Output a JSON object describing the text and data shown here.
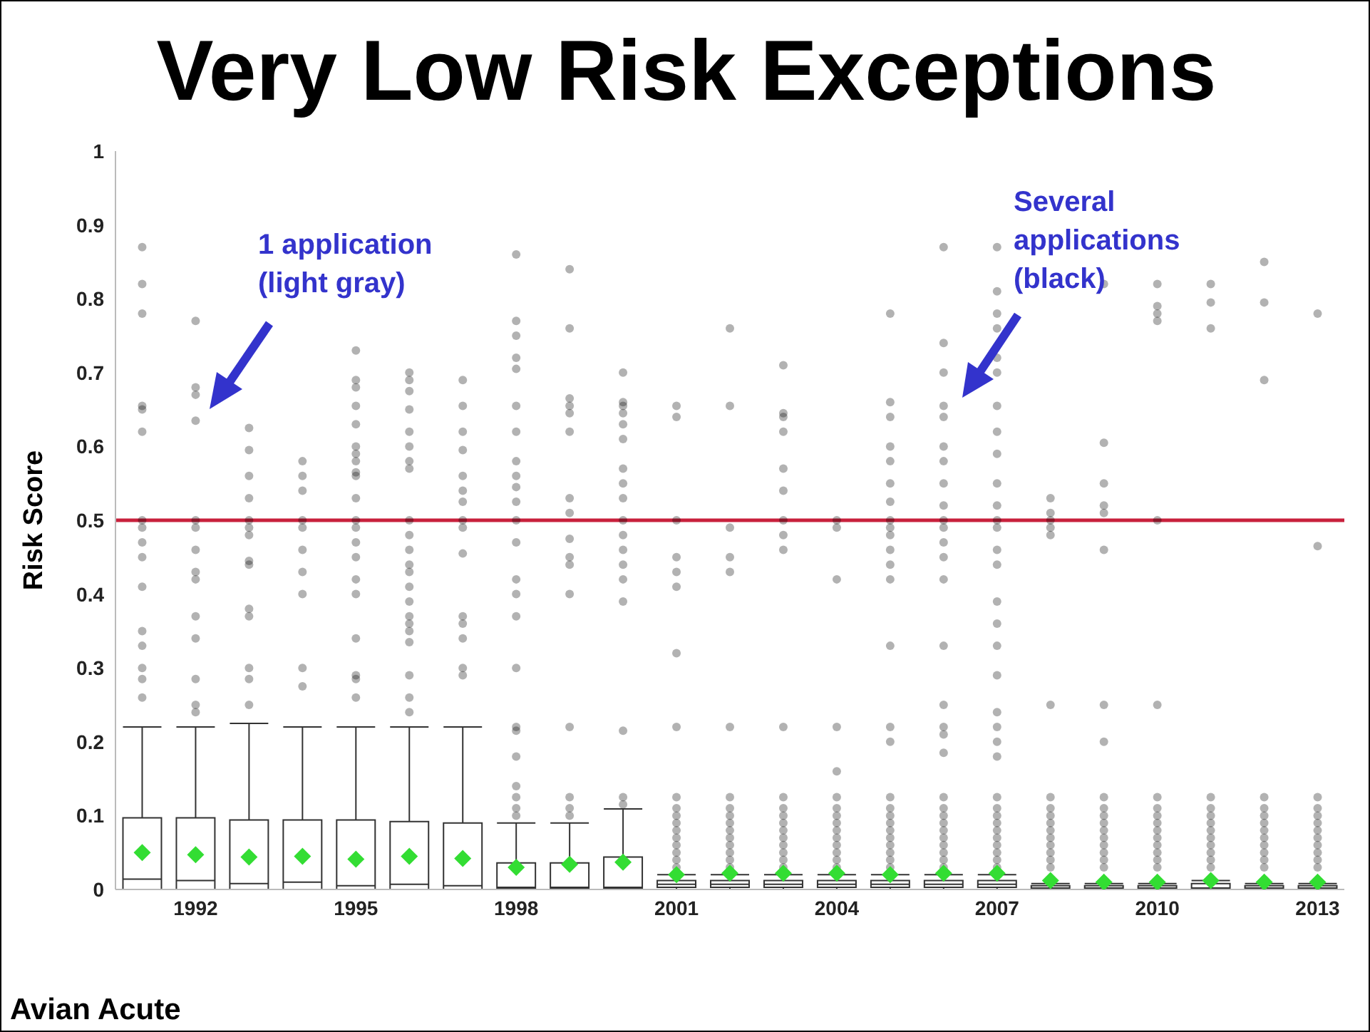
{
  "chart_data": {
    "type": "box",
    "title": "Very Low Risk Exceptions",
    "ylabel": "Risk Score",
    "categories": [
      null,
      "1992",
      null,
      null,
      "1995",
      null,
      null,
      "1998",
      null,
      null,
      "2001",
      null,
      null,
      "2004",
      null,
      null,
      "2007",
      null,
      null,
      "2010",
      null,
      null,
      "2013"
    ],
    "ylim": [
      0,
      1
    ],
    "yticks": [
      0,
      0.1,
      0.2,
      0.3,
      0.4,
      0.5,
      0.6,
      0.7,
      0.8,
      0.9,
      1
    ],
    "color": "#333333",
    "boxes": [
      {
        "low": 0,
        "q1": 0,
        "median": 0.014,
        "q3": 0.097,
        "high": 0.22,
        "mean": 0.05,
        "outliers": [
          0.87,
          0.82,
          0.78,
          0.655,
          0.65,
          0.62,
          0.5,
          0.49,
          0.47,
          0.45,
          0.41,
          0.35,
          0.33,
          0.3,
          0.285,
          0.26
        ]
      },
      {
        "low": 0,
        "q1": 0,
        "median": 0.012,
        "q3": 0.097,
        "high": 0.22,
        "mean": 0.047,
        "outliers": [
          0.77,
          0.68,
          0.67,
          0.635,
          0.5,
          0.49,
          0.46,
          0.43,
          0.42,
          0.37,
          0.34,
          0.285,
          0.25,
          0.24
        ]
      },
      {
        "low": 0,
        "q1": 0,
        "median": 0.008,
        "q3": 0.094,
        "high": 0.225,
        "mean": 0.044,
        "outliers": [
          0.625,
          0.595,
          0.56,
          0.53,
          0.5,
          0.49,
          0.48,
          0.445,
          0.44,
          0.38,
          0.37,
          0.3,
          0.285,
          0.25
        ]
      },
      {
        "low": 0,
        "q1": 0,
        "median": 0.01,
        "q3": 0.094,
        "high": 0.22,
        "mean": 0.045,
        "outliers": [
          0.58,
          0.56,
          0.54,
          0.5,
          0.49,
          0.46,
          0.43,
          0.4,
          0.3,
          0.275
        ]
      },
      {
        "low": 0,
        "q1": 0,
        "median": 0.005,
        "q3": 0.094,
        "high": 0.22,
        "mean": 0.041,
        "outliers": [
          0.73,
          0.69,
          0.68,
          0.655,
          0.63,
          0.6,
          0.59,
          0.58,
          0.565,
          0.56,
          0.53,
          0.5,
          0.49,
          0.47,
          0.45,
          0.42,
          0.4,
          0.34,
          0.29,
          0.285,
          0.26
        ]
      },
      {
        "low": 0,
        "q1": 0,
        "median": 0.007,
        "q3": 0.092,
        "high": 0.22,
        "mean": 0.045,
        "outliers": [
          0.7,
          0.69,
          0.675,
          0.65,
          0.62,
          0.6,
          0.58,
          0.57,
          0.5,
          0.48,
          0.46,
          0.44,
          0.43,
          0.41,
          0.39,
          0.37,
          0.36,
          0.35,
          0.335,
          0.29,
          0.26,
          0.24
        ]
      },
      {
        "low": 0,
        "q1": 0,
        "median": 0.005,
        "q3": 0.09,
        "high": 0.22,
        "mean": 0.042,
        "outliers": [
          0.69,
          0.655,
          0.62,
          0.595,
          0.56,
          0.54,
          0.525,
          0.5,
          0.49,
          0.455,
          0.37,
          0.36,
          0.34,
          0.3,
          0.29
        ]
      },
      {
        "low": 0,
        "q1": 0.002,
        "median": 0.003,
        "q3": 0.036,
        "high": 0.09,
        "mean": 0.03,
        "outliers": [
          0.86,
          0.77,
          0.75,
          0.72,
          0.705,
          0.655,
          0.62,
          0.58,
          0.56,
          0.545,
          0.525,
          0.5,
          0.47,
          0.42,
          0.4,
          0.37,
          0.3,
          0.22,
          0.215,
          0.18,
          0.14,
          0.125,
          0.11,
          0.1
        ]
      },
      {
        "low": 0,
        "q1": 0.002,
        "median": 0.003,
        "q3": 0.036,
        "high": 0.09,
        "mean": 0.034,
        "outliers": [
          0.84,
          0.76,
          0.665,
          0.655,
          0.645,
          0.62,
          0.53,
          0.51,
          0.475,
          0.45,
          0.44,
          0.4,
          0.22,
          0.125,
          0.11,
          0.1
        ]
      },
      {
        "low": 0,
        "q1": 0.002,
        "median": 0.003,
        "q3": 0.044,
        "high": 0.109,
        "mean": 0.037,
        "outliers": [
          0.7,
          0.66,
          0.655,
          0.645,
          0.63,
          0.61,
          0.57,
          0.55,
          0.53,
          0.5,
          0.48,
          0.46,
          0.44,
          0.42,
          0.39,
          0.215,
          0.125,
          0.115
        ]
      },
      {
        "low": 0,
        "q1": 0.003,
        "median": 0.007,
        "q3": 0.012,
        "high": 0.02,
        "mean": 0.02,
        "outliers": [
          0.655,
          0.64,
          0.5,
          0.45,
          0.43,
          0.41,
          0.32,
          0.22,
          0.125,
          0.11,
          0.1,
          0.09,
          0.08,
          0.07,
          0.06,
          0.05,
          0.04,
          0.03
        ]
      },
      {
        "low": 0,
        "q1": 0.003,
        "median": 0.007,
        "q3": 0.012,
        "high": 0.02,
        "mean": 0.022,
        "outliers": [
          0.76,
          0.655,
          0.49,
          0.45,
          0.43,
          0.22,
          0.125,
          0.11,
          0.1,
          0.09,
          0.08,
          0.07,
          0.06,
          0.05,
          0.04,
          0.03
        ]
      },
      {
        "low": 0,
        "q1": 0.003,
        "median": 0.007,
        "q3": 0.012,
        "high": 0.02,
        "mean": 0.022,
        "outliers": [
          0.71,
          0.645,
          0.64,
          0.62,
          0.57,
          0.54,
          0.5,
          0.48,
          0.46,
          0.22,
          0.125,
          0.11,
          0.1,
          0.09,
          0.08,
          0.07,
          0.06,
          0.05,
          0.04,
          0.03
        ]
      },
      {
        "low": 0,
        "q1": 0.003,
        "median": 0.007,
        "q3": 0.012,
        "high": 0.02,
        "mean": 0.022,
        "outliers": [
          0.5,
          0.49,
          0.42,
          0.22,
          0.16,
          0.125,
          0.11,
          0.1,
          0.09,
          0.08,
          0.07,
          0.06,
          0.05,
          0.04,
          0.03
        ]
      },
      {
        "low": 0,
        "q1": 0.003,
        "median": 0.007,
        "q3": 0.012,
        "high": 0.02,
        "mean": 0.02,
        "outliers": [
          0.78,
          0.66,
          0.64,
          0.6,
          0.58,
          0.55,
          0.525,
          0.5,
          0.49,
          0.48,
          0.46,
          0.44,
          0.42,
          0.33,
          0.22,
          0.2,
          0.125,
          0.11,
          0.1,
          0.09,
          0.08,
          0.07,
          0.06,
          0.05,
          0.04,
          0.03
        ]
      },
      {
        "low": 0,
        "q1": 0.003,
        "median": 0.007,
        "q3": 0.012,
        "high": 0.02,
        "mean": 0.022,
        "outliers": [
          0.87,
          0.74,
          0.7,
          0.655,
          0.64,
          0.6,
          0.58,
          0.55,
          0.52,
          0.5,
          0.49,
          0.47,
          0.45,
          0.42,
          0.33,
          0.25,
          0.22,
          0.21,
          0.185,
          0.125,
          0.11,
          0.1,
          0.09,
          0.08,
          0.07,
          0.06,
          0.05,
          0.04,
          0.03
        ]
      },
      {
        "low": 0,
        "q1": 0.003,
        "median": 0.007,
        "q3": 0.012,
        "high": 0.02,
        "mean": 0.022,
        "outliers": [
          0.87,
          0.81,
          0.78,
          0.76,
          0.72,
          0.7,
          0.655,
          0.62,
          0.59,
          0.55,
          0.52,
          0.5,
          0.49,
          0.46,
          0.44,
          0.39,
          0.36,
          0.33,
          0.29,
          0.24,
          0.22,
          0.2,
          0.18,
          0.125,
          0.11,
          0.1,
          0.09,
          0.08,
          0.07,
          0.06,
          0.05,
          0.04,
          0.03
        ]
      },
      {
        "low": 0,
        "q1": 0,
        "median": 0.002,
        "q3": 0.005,
        "high": 0.008,
        "mean": 0.012,
        "outliers": [
          0.53,
          0.51,
          0.5,
          0.49,
          0.48,
          0.25,
          0.125,
          0.11,
          0.1,
          0.09,
          0.08,
          0.07,
          0.06,
          0.05,
          0.04,
          0.03
        ]
      },
      {
        "low": 0,
        "q1": 0,
        "median": 0.002,
        "q3": 0.005,
        "high": 0.008,
        "mean": 0.01,
        "outliers": [
          0.82,
          0.605,
          0.55,
          0.52,
          0.51,
          0.46,
          0.25,
          0.2,
          0.125,
          0.11,
          0.1,
          0.09,
          0.08,
          0.07,
          0.06,
          0.05,
          0.04,
          0.03
        ]
      },
      {
        "low": 0,
        "q1": 0,
        "median": 0.002,
        "q3": 0.005,
        "high": 0.008,
        "mean": 0.01,
        "outliers": [
          0.82,
          0.79,
          0.78,
          0.77,
          0.5,
          0.25,
          0.125,
          0.11,
          0.1,
          0.09,
          0.08,
          0.07,
          0.06,
          0.05,
          0.04,
          0.03
        ]
      },
      {
        "low": 0,
        "q1": 0,
        "median": 0.002,
        "q3": 0.008,
        "high": 0.012,
        "mean": 0.012,
        "outliers": [
          0.82,
          0.795,
          0.76,
          0.125,
          0.11,
          0.1,
          0.09,
          0.08,
          0.07,
          0.06,
          0.05,
          0.04,
          0.03
        ]
      },
      {
        "low": 0,
        "q1": 0,
        "median": 0.002,
        "q3": 0.005,
        "high": 0.008,
        "mean": 0.01,
        "outliers": [
          0.85,
          0.795,
          0.69,
          0.125,
          0.11,
          0.1,
          0.09,
          0.08,
          0.07,
          0.06,
          0.05,
          0.04,
          0.03
        ]
      },
      {
        "low": 0,
        "q1": 0,
        "median": 0.002,
        "q3": 0.005,
        "high": 0.008,
        "mean": 0.01,
        "outliers": [
          0.78,
          0.465,
          0.125,
          0.11,
          0.1,
          0.09,
          0.08,
          0.07,
          0.06,
          0.05,
          0.04,
          0.03
        ]
      }
    ],
    "ref_lines": [
      {
        "axis": "y",
        "value": 0.5,
        "color": "#c8203c"
      }
    ],
    "annotations": [
      "1 application\n(light gray)",
      "Several\napplications\n(black)",
      "Avian Acute"
    ]
  }
}
